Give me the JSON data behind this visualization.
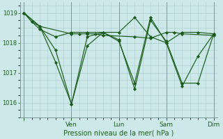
{
  "bg_color": "#cce8e8",
  "grid_color": "#aacccc",
  "line_color": "#1a5c1a",
  "marker_color": "#1a5c1a",
  "xlabel": "Pression niveau de la mer( hPa )",
  "xlabel_color": "#1a5c1a",
  "tick_color": "#1a5c1a",
  "ylim": [
    1015.5,
    1019.35
  ],
  "yticks": [
    1016,
    1017,
    1018,
    1019
  ],
  "day_positions": [
    0,
    6,
    12,
    18,
    24
  ],
  "day_labels": [
    "",
    "Ven",
    "Lun",
    "Sam",
    "Dim"
  ],
  "series1_x": [
    0,
    1,
    2,
    6,
    7,
    8,
    9,
    10,
    14,
    16,
    18,
    19,
    20,
    24
  ],
  "series1_y": [
    1019.0,
    1018.7,
    1018.55,
    1018.3,
    1018.3,
    1018.3,
    1018.3,
    1018.25,
    1018.2,
    1018.15,
    1018.35,
    1018.35,
    1018.3,
    1018.25
  ],
  "series2_x": [
    0,
    1,
    2,
    4,
    6,
    8,
    10,
    12,
    14,
    16,
    18,
    20,
    22,
    24
  ],
  "series2_y": [
    1019.0,
    1018.7,
    1018.45,
    1018.2,
    1018.35,
    1018.35,
    1018.35,
    1018.35,
    1018.85,
    1018.2,
    1018.0,
    1018.35,
    1018.35,
    1018.3
  ],
  "series3_x": [
    0,
    2,
    4,
    6,
    8,
    10,
    12,
    14,
    16,
    18,
    20,
    22,
    24
  ],
  "series3_y": [
    1019.0,
    1018.55,
    1017.75,
    1015.95,
    1017.9,
    1018.35,
    1018.1,
    1016.45,
    1018.75,
    1018.05,
    1016.65,
    1016.65,
    1018.3
  ],
  "series4_x": [
    0,
    2,
    4,
    6,
    8,
    10,
    12,
    14,
    16,
    18,
    20,
    22,
    24
  ],
  "series4_y": [
    1019.0,
    1018.55,
    1017.35,
    1015.95,
    1018.2,
    1018.35,
    1018.05,
    1016.65,
    1018.85,
    1018.0,
    1016.55,
    1017.55,
    1018.3
  ],
  "xmin": -0.5,
  "xmax": 24.5,
  "figsize": [
    3.2,
    2.0
  ],
  "dpi": 100
}
